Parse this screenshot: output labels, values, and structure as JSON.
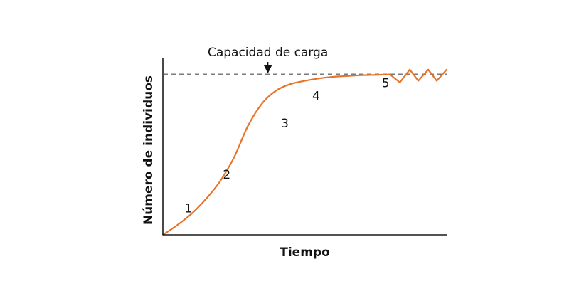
{
  "chart_data": {
    "type": "line",
    "title": "",
    "xlabel": "Tiempo",
    "ylabel": "Número de individuos",
    "xlim": [
      0,
      10
    ],
    "ylim": [
      0,
      1.1
    ],
    "grid": false,
    "axis_ticks_visible": false,
    "carrying_capacity": {
      "value": 1.0,
      "label": "Capacidad de carga",
      "style": "dashed"
    },
    "series": [
      {
        "x": [
          0,
          0.5,
          1,
          1.5,
          2,
          2.5,
          3,
          3.5,
          4,
          4.5,
          5,
          5.5,
          6,
          6.5,
          7,
          7.5,
          8,
          8.35,
          8.7,
          9.0,
          9.35,
          9.65,
          10.0
        ],
        "y": [
          0.0,
          0.06,
          0.13,
          0.22,
          0.33,
          0.48,
          0.68,
          0.82,
          0.9,
          0.94,
          0.96,
          0.975,
          0.985,
          0.99,
          0.995,
          0.997,
          1.0,
          0.95,
          1.03,
          0.96,
          1.03,
          0.96,
          1.03
        ]
      }
    ],
    "stage_labels": [
      {
        "label": "1",
        "x": 0.9,
        "y": 0.14
      },
      {
        "label": "2",
        "x": 2.25,
        "y": 0.35
      },
      {
        "label": "3",
        "x": 4.3,
        "y": 0.67
      },
      {
        "label": "4",
        "x": 5.4,
        "y": 0.84
      },
      {
        "label": "5",
        "x": 7.85,
        "y": 0.92
      }
    ]
  },
  "colors": {
    "curve": "#e8742a",
    "capacity_line": "#7a7a7a",
    "axis": "#1a1a1a",
    "text": "#111111"
  }
}
